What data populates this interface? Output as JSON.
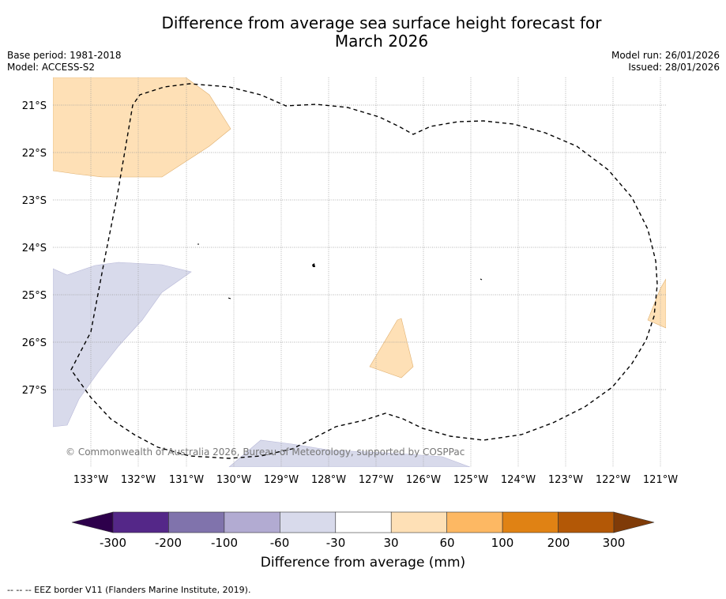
{
  "title": {
    "line1": "Difference from average sea surface height forecast for",
    "line2": "March 2026"
  },
  "meta": {
    "base_period": "Base period: 1981-2018",
    "model": "Model: ACCESS-S2",
    "model_run": "Model run: 26/01/2026",
    "issued": "Issued: 28/01/2026"
  },
  "map": {
    "lat_labels": [
      "21°S",
      "22°S",
      "23°S",
      "24°S",
      "25°S",
      "26°S",
      "27°S"
    ],
    "lon_labels": [
      "133°W",
      "132°W",
      "131°W",
      "130°W",
      "129°W",
      "128°W",
      "127°W",
      "126°W",
      "125°W",
      "124°W",
      "123°W",
      "122°W",
      "121°W"
    ],
    "copyright": "© Commonwealth of Australia 2026, Bureau of Meteorology, supported by COSPPac",
    "eez_border_color": "#000000"
  },
  "colorbar": {
    "title": "Difference from average (mm)",
    "tick_labels": [
      "-300",
      "-200",
      "-100",
      "-60",
      "-30",
      "30",
      "60",
      "100",
      "200",
      "300"
    ],
    "colors": {
      "below_min": "#2d004b",
      "bins": [
        "#542788",
        "#8073ac",
        "#b2abd2",
        "#d8daeb",
        "#ffffff",
        "#fee0b6",
        "#fdb863",
        "#e08214",
        "#b35806"
      ],
      "above_max": "#7f3b08"
    }
  },
  "footnote": "--  --  -- EEZ border V11 (Flanders Marine Institute, 2019)."
}
